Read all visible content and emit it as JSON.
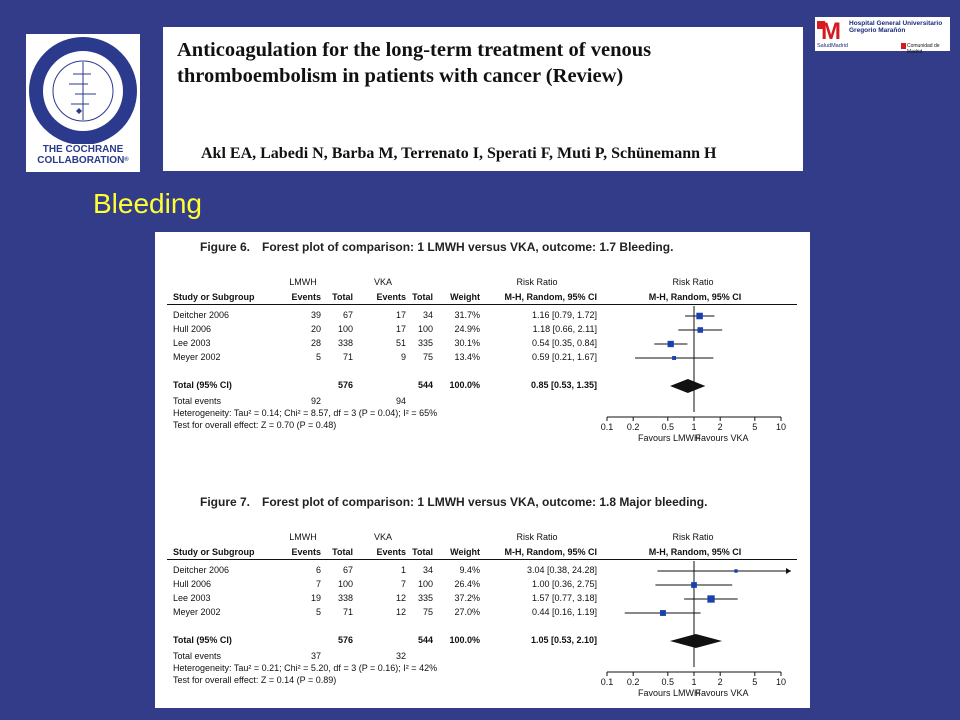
{
  "logo": {
    "line1": "THE COCHRANE",
    "line2": "COLLABORATION",
    "mark": "®"
  },
  "header": {
    "title": "Anticoagulation for the long-term treatment of venous thromboembolism in patients with cancer (Review)",
    "authors": "Akl EA, Labedi N, Barba M, Terrenato I, Sperati F, Muti P, Schünemann H"
  },
  "hospital": {
    "name": "Hospital General Universitario Gregorio Marañón",
    "left": "SaludMadrid",
    "right": "Comunidad de Madrid"
  },
  "section_title": "Bleeding",
  "figures": [
    {
      "label": "Figure 6.",
      "title": "Forest plot of comparison: 1 LMWH versus VKA, outcome: 1.7 Bleeding.",
      "group1": "LMWH",
      "group2": "VKA",
      "rr_label": "Risk Ratio",
      "rr_method": "M-H, Random, 95% CI",
      "col_study": "Study or Subgroup",
      "col_events": "Events",
      "col_total": "Total",
      "col_weight": "Weight",
      "rows": [
        {
          "study": "Deitcher 2006",
          "e1": "39",
          "t1": "67",
          "e2": "17",
          "t2": "34",
          "weight": "31.7%",
          "rr_text": "1.16 [0.79, 1.72]",
          "rr": 1.16,
          "lo": 0.79,
          "hi": 1.72
        },
        {
          "study": "Hull 2006",
          "e1": "20",
          "t1": "100",
          "e2": "17",
          "t2": "100",
          "weight": "24.9%",
          "rr_text": "1.18 [0.66, 2.11]",
          "rr": 1.18,
          "lo": 0.66,
          "hi": 2.11
        },
        {
          "study": "Lee 2003",
          "e1": "28",
          "t1": "338",
          "e2": "51",
          "t2": "335",
          "weight": "30.1%",
          "rr_text": "0.54 [0.35, 0.84]",
          "rr": 0.54,
          "lo": 0.35,
          "hi": 0.84
        },
        {
          "study": "Meyer 2002",
          "e1": "5",
          "t1": "71",
          "e2": "9",
          "t2": "75",
          "weight": "13.4%",
          "rr_text": "0.59 [0.21, 1.67]",
          "rr": 0.59,
          "lo": 0.21,
          "hi": 1.67
        }
      ],
      "total": {
        "label": "Total (95% CI)",
        "t1": "576",
        "t2": "544",
        "weight": "100.0%",
        "rr_text": "0.85 [0.53, 1.35]",
        "rr": 0.85,
        "lo": 0.53,
        "hi": 1.35
      },
      "events": {
        "label": "Total events",
        "e1": "92",
        "e2": "94"
      },
      "heterogeneity": "Heterogeneity: Tau² = 0.14; Chi² = 8.57, df = 3 (P = 0.04); I² = 65%",
      "overall": "Test for overall effect: Z = 0.70 (P = 0.48)",
      "ticks": [
        "0.1",
        "0.2",
        "0.5",
        "1",
        "2",
        "5",
        "10"
      ],
      "favours_left": "Favours LMWH",
      "favours_right": "Favours VKA"
    },
    {
      "label": "Figure 7.",
      "title": "Forest plot of comparison: 1 LMWH versus VKA, outcome: 1.8 Major bleeding.",
      "group1": "LMWH",
      "group2": "VKA",
      "rr_label": "Risk Ratio",
      "rr_method": "M-H, Random, 95% CI",
      "col_study": "Study or Subgroup",
      "col_events": "Events",
      "col_total": "Total",
      "col_weight": "Weight",
      "rows": [
        {
          "study": "Deitcher 2006",
          "e1": "6",
          "t1": "67",
          "e2": "1",
          "t2": "34",
          "weight": "9.4%",
          "rr_text": "3.04 [0.38, 24.28]",
          "rr": 3.04,
          "lo": 0.38,
          "hi": 24.28
        },
        {
          "study": "Hull 2006",
          "e1": "7",
          "t1": "100",
          "e2": "7",
          "t2": "100",
          "weight": "26.4%",
          "rr_text": "1.00 [0.36, 2.75]",
          "rr": 1.0,
          "lo": 0.36,
          "hi": 2.75
        },
        {
          "study": "Lee 2003",
          "e1": "19",
          "t1": "338",
          "e2": "12",
          "t2": "335",
          "weight": "37.2%",
          "rr_text": "1.57 [0.77, 3.18]",
          "rr": 1.57,
          "lo": 0.77,
          "hi": 3.18
        },
        {
          "study": "Meyer 2002",
          "e1": "5",
          "t1": "71",
          "e2": "12",
          "t2": "75",
          "weight": "27.0%",
          "rr_text": "0.44 [0.16, 1.19]",
          "rr": 0.44,
          "lo": 0.16,
          "hi": 1.19
        }
      ],
      "total": {
        "label": "Total (95% CI)",
        "t1": "576",
        "t2": "544",
        "weight": "100.0%",
        "rr_text": "1.05 [0.53, 2.10]",
        "rr": 1.05,
        "lo": 0.53,
        "hi": 2.1
      },
      "events": {
        "label": "Total events",
        "e1": "37",
        "e2": "32"
      },
      "heterogeneity": "Heterogeneity: Tau² = 0.21; Chi² = 5.20, df = 3 (P = 0.16); I² = 42%",
      "overall": "Test for overall effect: Z = 0.14 (P = 0.89)",
      "ticks": [
        "0.1",
        "0.2",
        "0.5",
        "1",
        "2",
        "5",
        "10"
      ],
      "favours_left": "Favours LMWH",
      "favours_right": "Favours VKA"
    }
  ]
}
